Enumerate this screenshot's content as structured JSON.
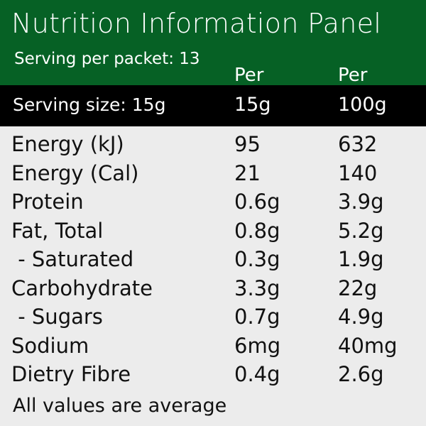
{
  "header": {
    "title": "Nutrition Information Panel",
    "servings_per_packet": "Serving per packet: 13",
    "col1_label": "Per",
    "col2_label": "Per"
  },
  "serving_band": {
    "serving_size": "Serving size: 15g",
    "col1_unit": "15g",
    "col2_unit": "100g"
  },
  "rows": [
    {
      "name": "Energy (kJ)",
      "per_serving": "95",
      "per_100g": "632"
    },
    {
      "name": "Energy (Cal)",
      "per_serving": "21",
      "per_100g": "140"
    },
    {
      "name": "Protein",
      "per_serving": "0.6g",
      "per_100g": "3.9g"
    },
    {
      "name": "Fat, Total",
      "per_serving": "0.8g",
      "per_100g": "5.2g"
    },
    {
      "name": " - Saturated",
      "per_serving": "0.3g",
      "per_100g": "1.9g"
    },
    {
      "name": "Carbohydrate",
      "per_serving": "3.3g",
      "per_100g": "22g"
    },
    {
      "name": " - Sugars",
      "per_serving": "0.7g",
      "per_100g": "4.9g"
    },
    {
      "name": "Sodium",
      "per_serving": "6mg",
      "per_100g": "40mg"
    },
    {
      "name": "Dietry Fibre",
      "per_serving": "0.4g",
      "per_100g": "2.6g"
    }
  ],
  "footer": "All values are average",
  "colors": {
    "header_green": "#066125",
    "band_black": "#000000",
    "body_gray": "#ececec"
  }
}
